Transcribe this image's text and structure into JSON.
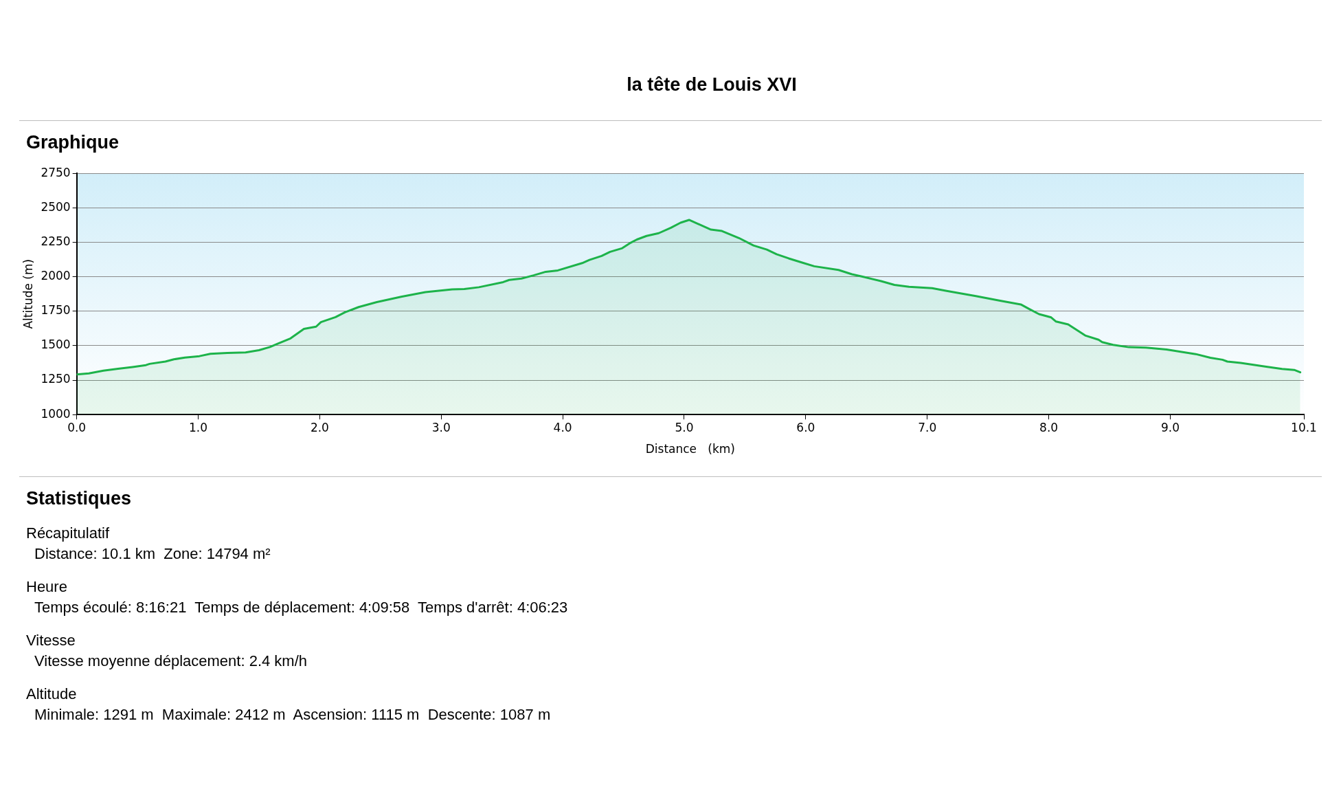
{
  "chart_data": {
    "type": "area",
    "title": "la tête de Louis XVI",
    "xlabel": "Distance   (km)",
    "ylabel": "Altitude (m)",
    "x": [
      0,
      0.1,
      0.22,
      0.34,
      0.46,
      0.57,
      0.6,
      0.73,
      0.8,
      0.89,
      1.01,
      1.1,
      1.24,
      1.39,
      1.5,
      1.59,
      1.66,
      1.76,
      1.87,
      1.97,
      2.01,
      2.13,
      2.21,
      2.32,
      2.47,
      2.67,
      2.87,
      3.09,
      3.19,
      3.31,
      3.51,
      3.56,
      3.66,
      3.76,
      3.86,
      3.96,
      4.16,
      4.22,
      4.32,
      4.39,
      4.49,
      4.56,
      4.61,
      4.69,
      4.79,
      4.89,
      4.97,
      5.04,
      5.22,
      5.31,
      5.45,
      5.57,
      5.68,
      5.76,
      5.86,
      5.97,
      6.07,
      6.27,
      6.38,
      6.48,
      6.62,
      6.73,
      6.85,
      7.04,
      7.16,
      7.4,
      7.6,
      7.77,
      7.84,
      7.92,
      8.02,
      8.06,
      8.16,
      8.3,
      8.41,
      8.44,
      8.53,
      8.66,
      8.8,
      8.97,
      9.21,
      9.33,
      9.43,
      9.47,
      9.58,
      9.79,
      9.92,
      10.02,
      10.07
    ],
    "series": [
      {
        "color": "#1db34a",
        "values": [
          1291,
          1299,
          1319,
          1332,
          1345,
          1359,
          1368,
          1385,
          1401,
          1414,
          1424,
          1441,
          1447,
          1451,
          1467,
          1490,
          1516,
          1553,
          1622,
          1638,
          1671,
          1707,
          1743,
          1780,
          1816,
          1855,
          1888,
          1908,
          1911,
          1924,
          1961,
          1977,
          1987,
          2010,
          2036,
          2046,
          2099,
          2122,
          2151,
          2181,
          2207,
          2247,
          2270,
          2296,
          2316,
          2355,
          2392,
          2412,
          2342,
          2332,
          2281,
          2227,
          2197,
          2163,
          2133,
          2103,
          2076,
          2049,
          2018,
          1998,
          1968,
          1941,
          1927,
          1917,
          1897,
          1860,
          1826,
          1799,
          1766,
          1729,
          1705,
          1675,
          1654,
          1574,
          1543,
          1526,
          1506,
          1489,
          1486,
          1472,
          1439,
          1412,
          1398,
          1385,
          1375,
          1348,
          1331,
          1324,
          1307
        ]
      }
    ],
    "xlim": [
      0,
      10.1
    ],
    "xticks": [
      {
        "value": 0,
        "label": "0.0"
      },
      {
        "value": 1,
        "label": "1.0"
      },
      {
        "value": 2,
        "label": "2.0"
      },
      {
        "value": 3,
        "label": "3.0"
      },
      {
        "value": 4,
        "label": "4.0"
      },
      {
        "value": 5,
        "label": "5.0"
      },
      {
        "value": 6,
        "label": "6.0"
      },
      {
        "value": 7,
        "label": "7.0"
      },
      {
        "value": 8,
        "label": "8.0"
      },
      {
        "value": 9,
        "label": "9.0"
      },
      10.1
    ],
    "ylim": [
      1000,
      2750
    ],
    "yticks": [
      1000,
      1250,
      1500,
      1750,
      2000,
      2250,
      2500,
      2750
    ],
    "grid": "y",
    "legend": false,
    "marker": "none",
    "line_style": "solid",
    "annotations": [
      "Graphique",
      "Statistiques",
      "Récapitulatif",
      "Distance: 10.1 km  Zone: 14794 m²",
      "Heure",
      "Temps écoulé: 8:16:21  Temps de déplacement: 4:09:58  Temps d'arrêt: 4:06:23",
      "Vitesse",
      "Vitesse moyenne déplacement: 2.4 km/h",
      "Altitude",
      "Minimale: 1291 m  Maximale: 2412 m  Ascension: 1115 m  Descente: 1087 m"
    ]
  }
}
